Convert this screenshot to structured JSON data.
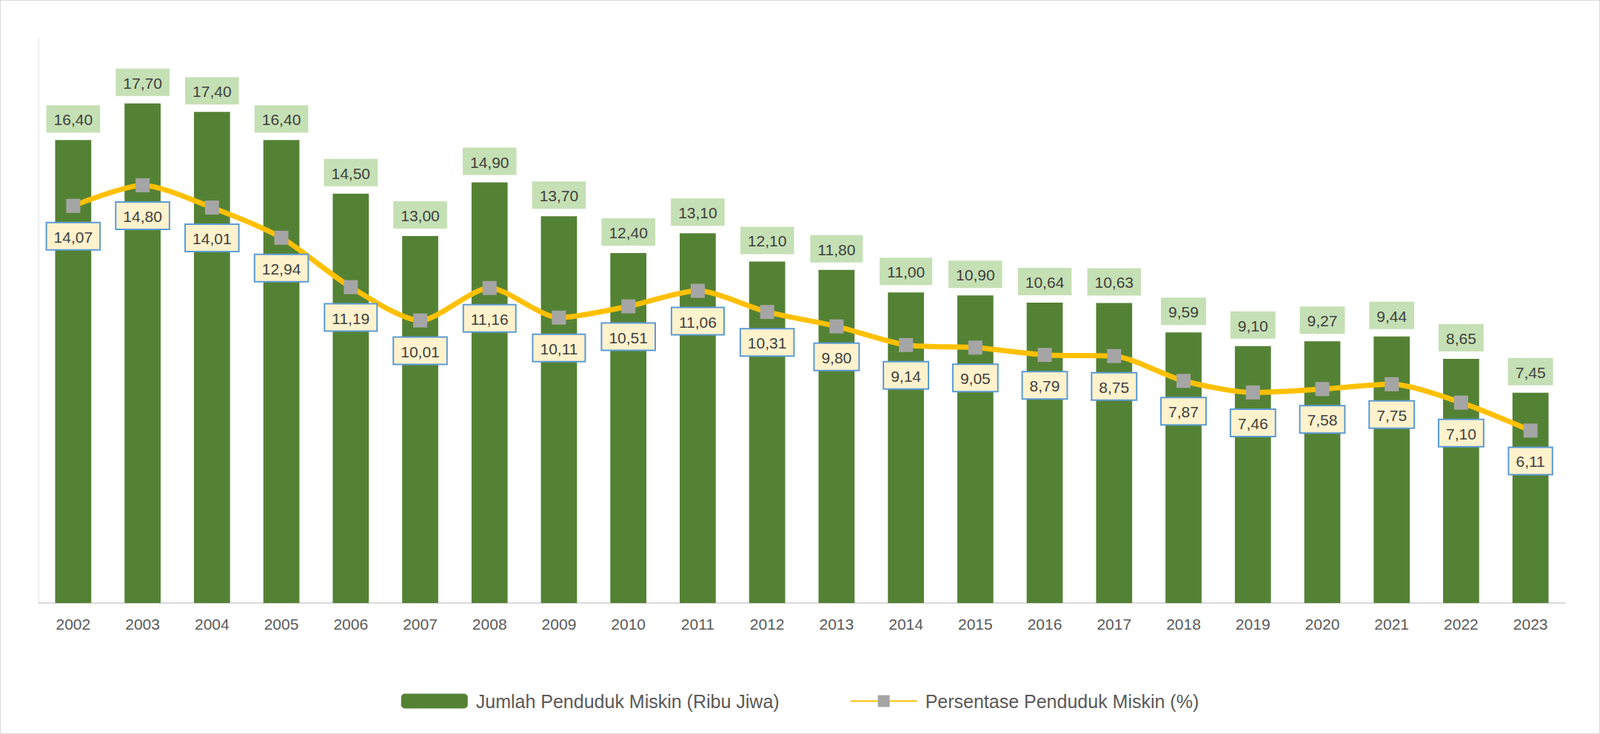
{
  "chart_data": {
    "type": "bar",
    "categories": [
      "2002",
      "2003",
      "2004",
      "2005",
      "2006",
      "2007",
      "2008",
      "2009",
      "2010",
      "2011",
      "2012",
      "2013",
      "2014",
      "2015",
      "2016",
      "2017",
      "2018",
      "2019",
      "2020",
      "2021",
      "2022",
      "2023"
    ],
    "series": [
      {
        "name": "Jumlah Penduduk Miskin (Ribu Jiwa)",
        "type": "bar",
        "color": "#548235",
        "values": [
          16.4,
          17.7,
          17.4,
          16.4,
          14.5,
          13.0,
          14.9,
          13.7,
          12.4,
          13.1,
          12.1,
          11.8,
          11.0,
          10.9,
          10.64,
          10.63,
          9.59,
          9.1,
          9.27,
          9.44,
          8.65,
          7.45
        ],
        "value_labels": [
          "16,40",
          "17,70",
          "17,40",
          "16,40",
          "14,50",
          "13,00",
          "14,90",
          "13,70",
          "12,40",
          "13,10",
          "12,10",
          "11,80",
          "11,00",
          "10,90",
          "10,64",
          "10,63",
          "9,59",
          "9,10",
          "9,27",
          "9,44",
          "8,65",
          "7,45"
        ]
      },
      {
        "name": "Persentase Penduduk Miskin (%)",
        "type": "line",
        "color": "#ffc000",
        "marker": "square",
        "line_style": "solid",
        "values": [
          14.07,
          14.8,
          14.01,
          12.94,
          11.19,
          10.01,
          11.16,
          10.11,
          10.51,
          11.06,
          10.31,
          9.8,
          9.14,
          9.05,
          8.79,
          8.75,
          7.87,
          7.46,
          7.58,
          7.75,
          7.1,
          6.11
        ],
        "value_labels": [
          "14,07",
          "14,80",
          "14,01",
          "12,94",
          "11,19",
          "10,01",
          "11,16",
          "10,11",
          "10,51",
          "11,06",
          "10,31",
          "9,80",
          "9,14",
          "9,05",
          "8,79",
          "8,75",
          "7,87",
          "7,46",
          "7,58",
          "7,75",
          "7,10",
          "6,11"
        ]
      }
    ],
    "ylim": [
      0,
      20
    ],
    "grid": false,
    "legend": "bottom",
    "data_labels": true,
    "tick_labels": "x"
  }
}
